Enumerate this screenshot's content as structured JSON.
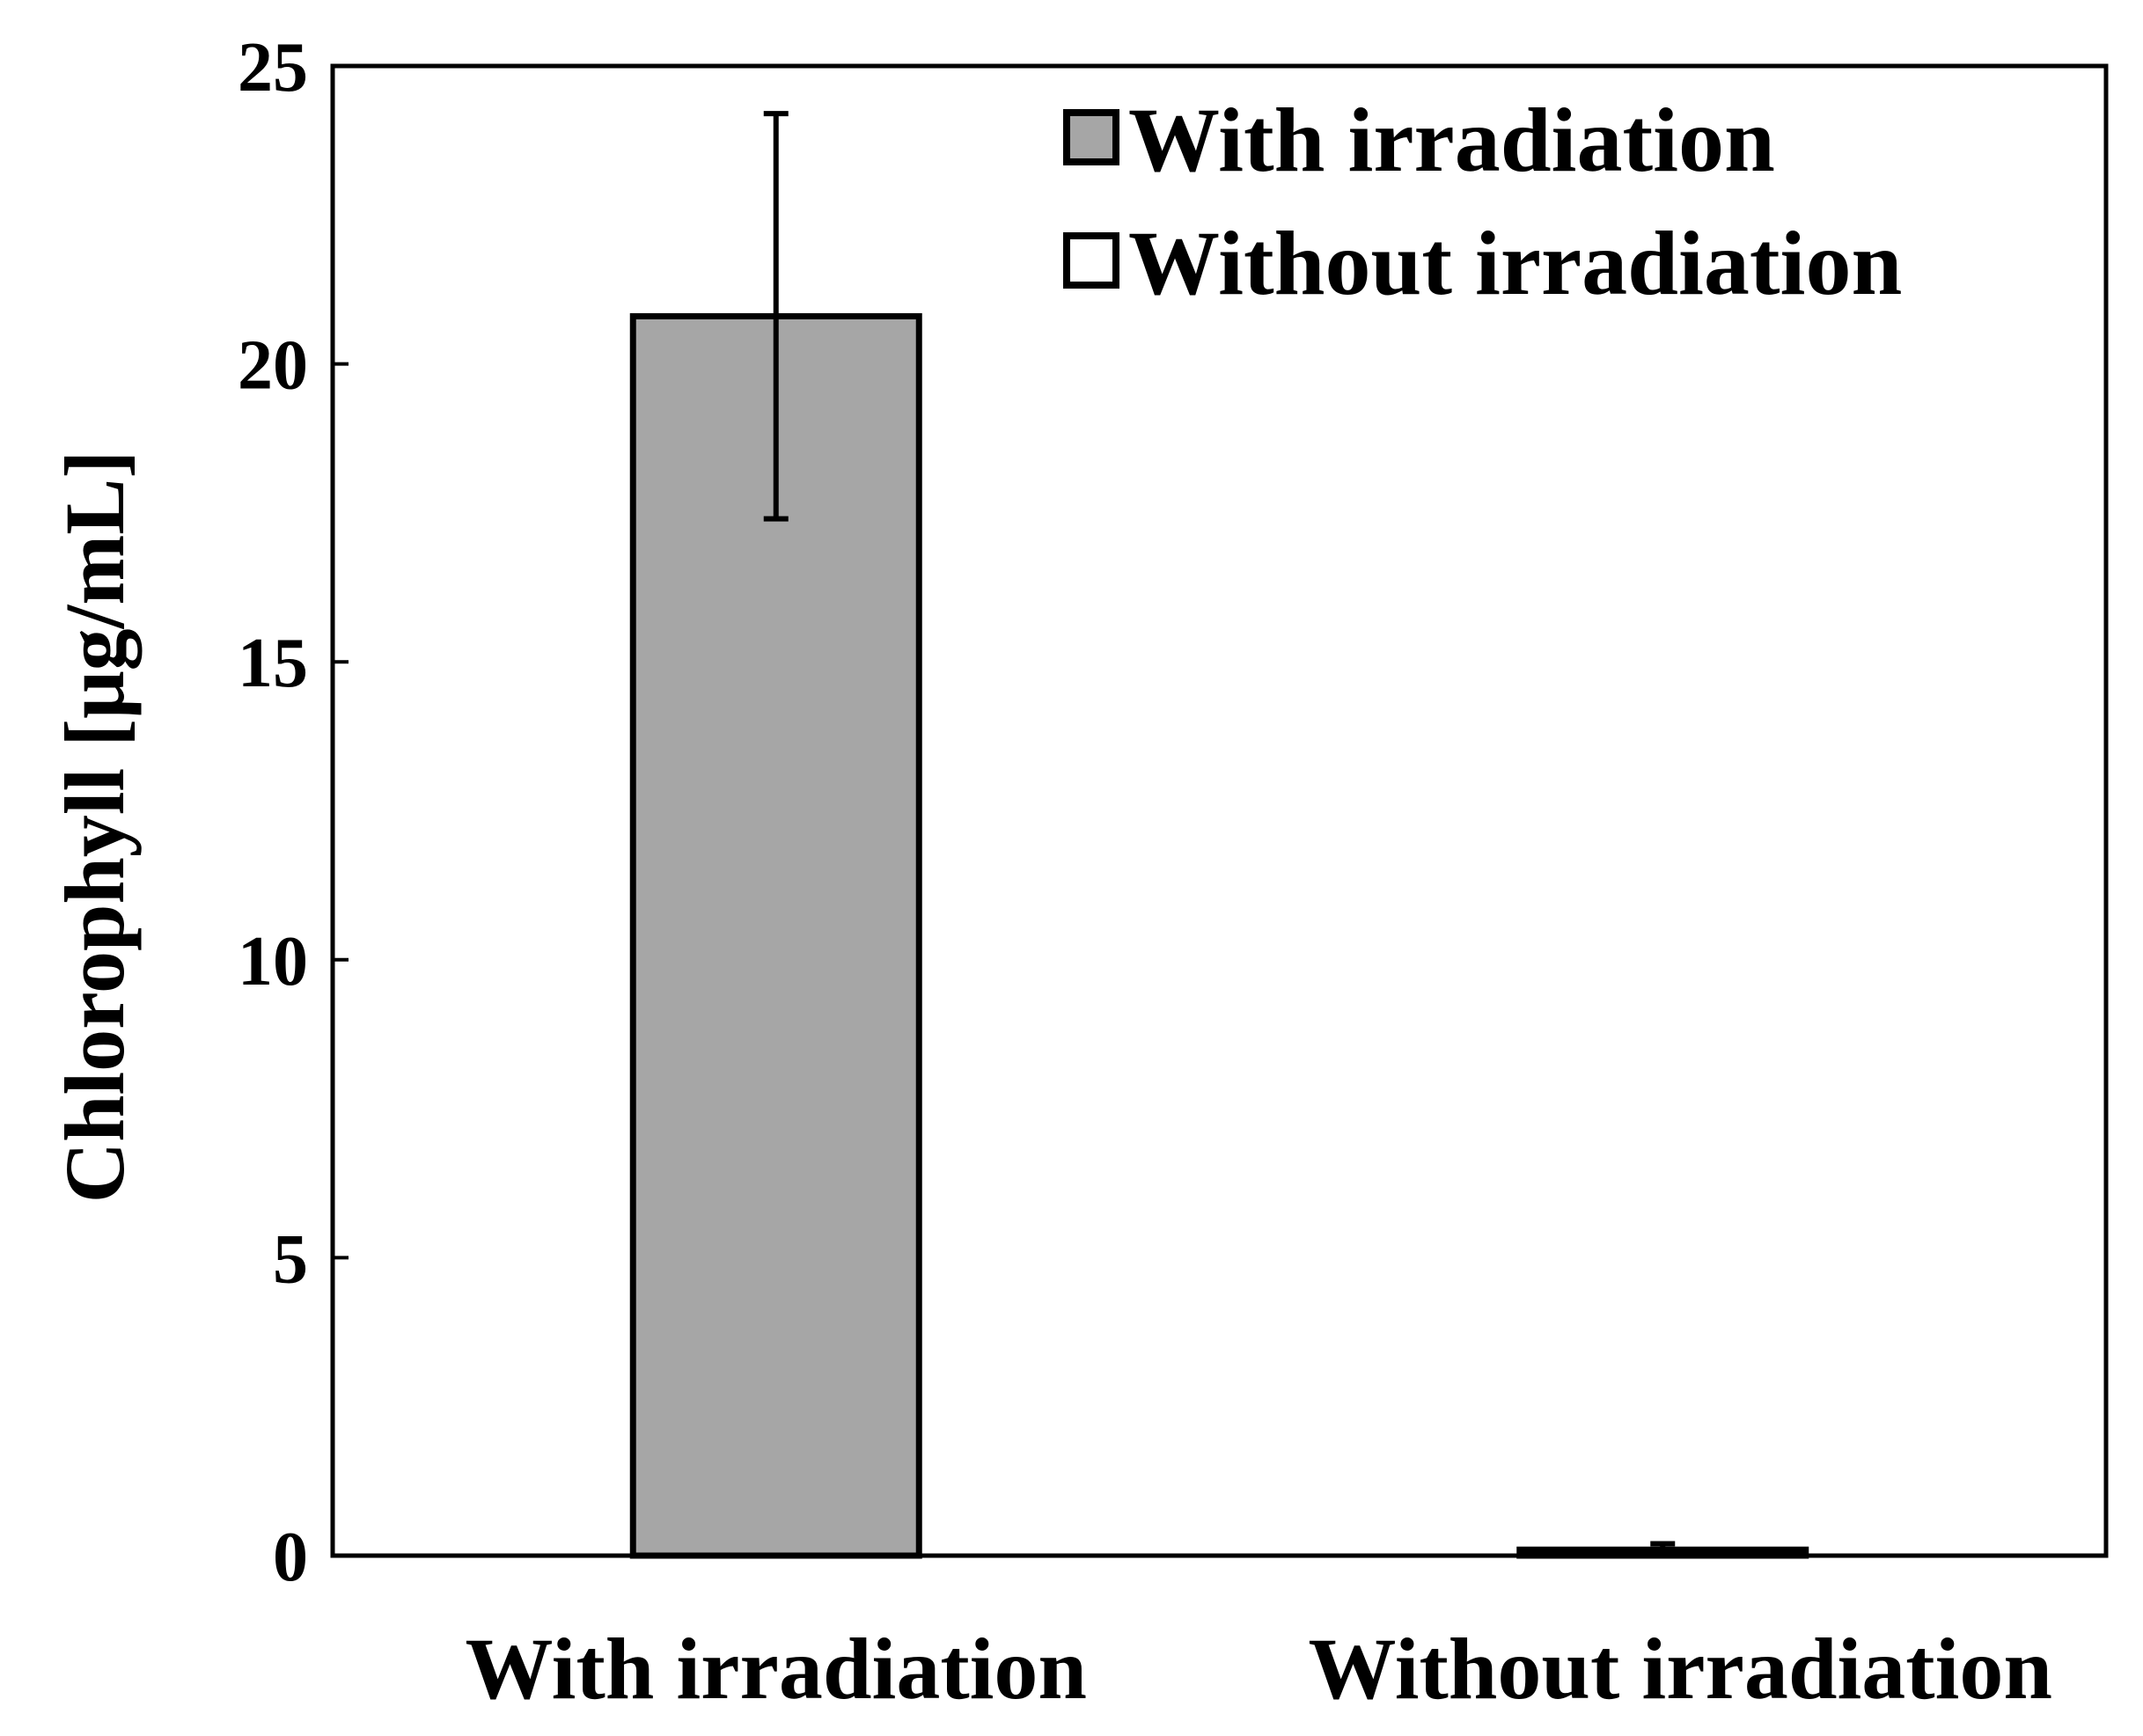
{
  "chart_data": {
    "type": "bar",
    "categories": [
      "With irradiation",
      "Without irradiation"
    ],
    "series": [
      {
        "name": "With irradiation",
        "values": [
          20.8,
          0.1
        ],
        "errors": [
          3.4,
          0.1
        ],
        "color": "#a6a6a6"
      }
    ],
    "legend": {
      "placement": "top-right",
      "entries": [
        {
          "label": "With irradiation",
          "color": "#a6a6a6"
        },
        {
          "label": "Without irradiation",
          "color": "#ffffff"
        }
      ]
    },
    "title": "",
    "xlabel": "",
    "ylabel": "Chlorophyll [μg/mL]",
    "ylim": [
      0,
      25
    ],
    "yticks": [
      0,
      5,
      10,
      15,
      20,
      25
    ],
    "ytick_labels": [
      "0",
      "5",
      "10",
      "15",
      "20",
      "25"
    ],
    "grid": false
  }
}
